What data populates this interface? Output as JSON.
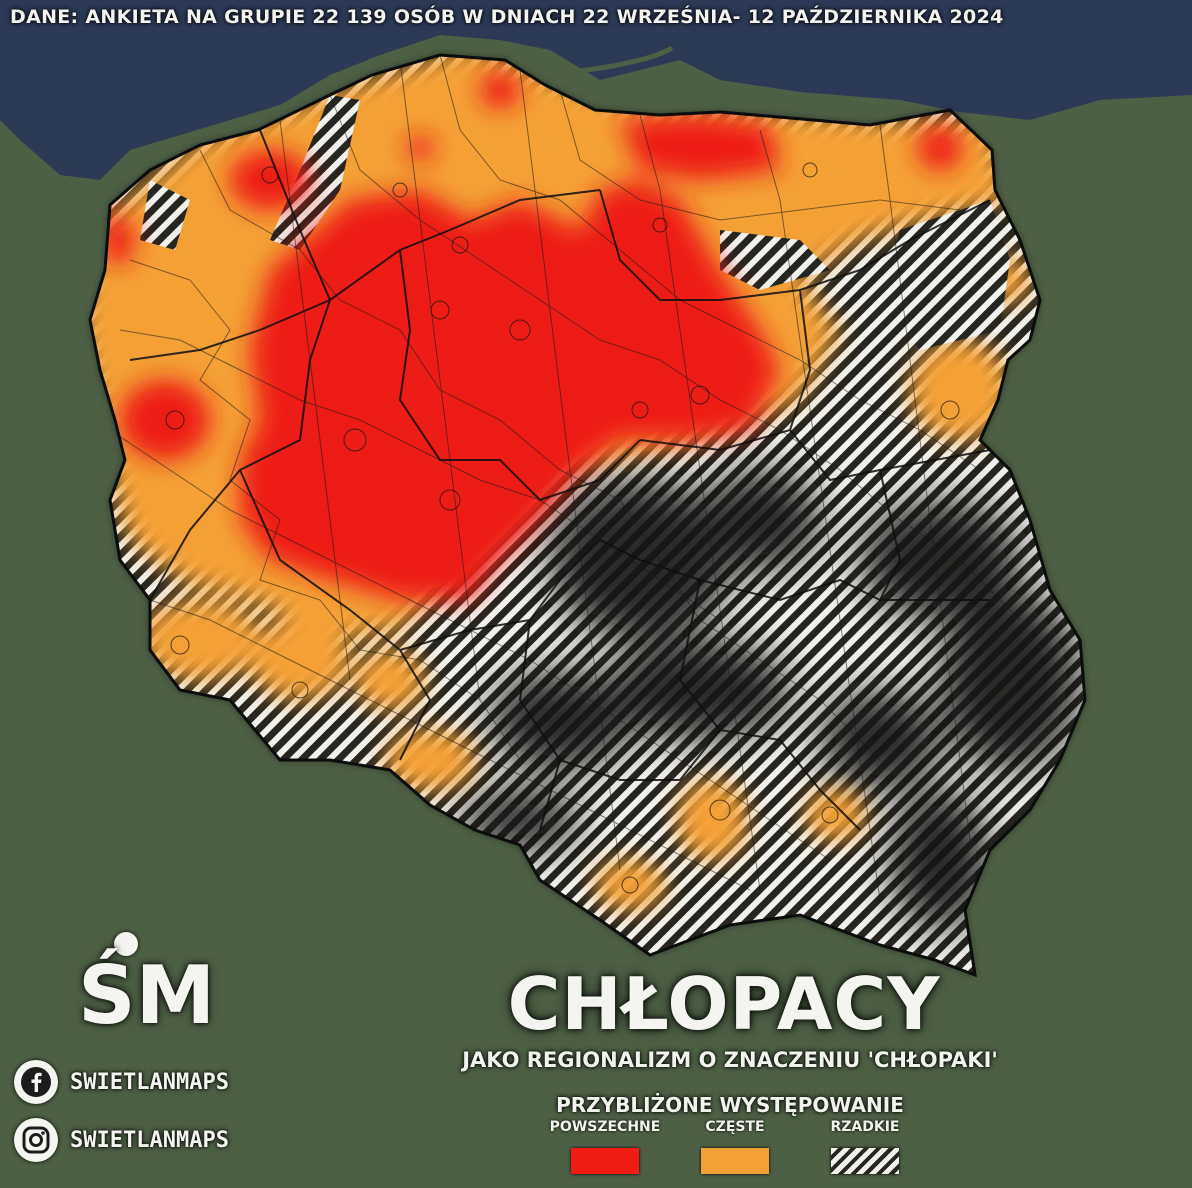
{
  "source_note": "DANE: ANKIETA NA GRUPIE 22 139 OSÓB W DNIACH 22 WRZEŚNIA- 12 PAŹDZIERNIKA 2024",
  "logo": {
    "text": "ŚM"
  },
  "social": [
    {
      "icon": "facebook-icon",
      "handle": "SWIETLANMAPS"
    },
    {
      "icon": "instagram-icon",
      "handle": "SWIETLANMAPS"
    }
  ],
  "title": "CHŁOPACY",
  "subtitle": "JAKO REGIONALIZM O ZNACZENIU 'CHŁOPAKI'",
  "legend": {
    "title": "PRZYBLIŻONE WYSTĘPOWANIE",
    "items": [
      {
        "label": "POWSZECHNE",
        "swatch": "solid",
        "color": "#ee1c13"
      },
      {
        "label": "CZĘSTE",
        "swatch": "solid",
        "color": "#f3a036"
      },
      {
        "label": "RZADKIE",
        "swatch": "hatched",
        "color": "#ffffff"
      }
    ]
  },
  "colors": {
    "background": "#4d5f45",
    "sea": "#2d3a55",
    "common": "#ee1c13",
    "frequent": "#f3a036",
    "rare_hatch": "#ffffff",
    "rare_dark": "#1b1a18",
    "border": "#111111"
  }
}
